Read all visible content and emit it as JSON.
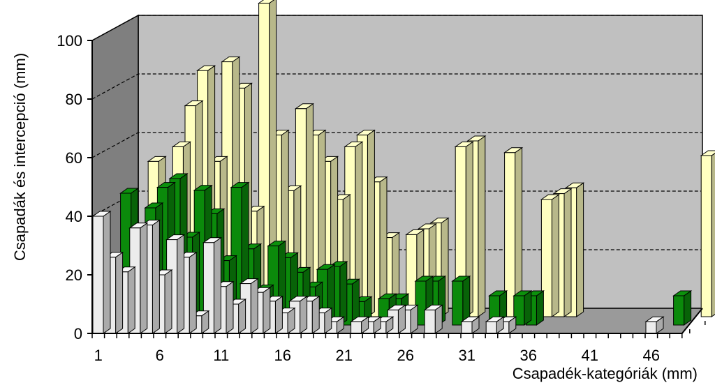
{
  "chart_data": {
    "type": "bar",
    "subtype": "3d-clustered-depth",
    "title": "",
    "xlabel": "Csapadék-kategóriák (mm)",
    "ylabel": "Csapadák és intercepció (mm)",
    "ylim": [
      0,
      100
    ],
    "yticks": [
      0,
      20,
      40,
      60,
      80,
      100
    ],
    "xtick_labels": [
      "1",
      "6",
      "11",
      "16",
      "21",
      "26",
      "31",
      "36",
      "41",
      "46"
    ],
    "categories": [
      1,
      2,
      3,
      4,
      5,
      6,
      7,
      8,
      9,
      10,
      11,
      12,
      13,
      14,
      15,
      16,
      17,
      18,
      19,
      20,
      21,
      22,
      23,
      24,
      25,
      26,
      27,
      28,
      29,
      30,
      31,
      32,
      33,
      34,
      35,
      36,
      37,
      38,
      39,
      40,
      41,
      42,
      43,
      44,
      45,
      46,
      47,
      48
    ],
    "grid": true,
    "colors": {
      "front": "#ececec",
      "middle": "#0b8a0b",
      "back": "#ffffc0",
      "wall": "#c0c0c0",
      "side_wall": "#7f7f7f",
      "floor": "#9a9a9a"
    },
    "series": [
      {
        "values": [
          40,
          26,
          21,
          36,
          37,
          20,
          32,
          26,
          6,
          31,
          16,
          10,
          17,
          14,
          11,
          7,
          11,
          11,
          7,
          4,
          null,
          4,
          4,
          4,
          8,
          8,
          null,
          8,
          null,
          null,
          4,
          null,
          4,
          4,
          null,
          null,
          null,
          null,
          null,
          null,
          null,
          null,
          null,
          null,
          null,
          4,
          null,
          null
        ]
      },
      {
        "values": [
          null,
          45,
          30,
          40,
          47,
          50,
          30,
          46,
          38,
          22,
          47,
          26,
          12,
          27,
          23,
          18,
          13,
          19,
          20,
          14,
          8,
          null,
          9,
          9,
          null,
          15,
          15,
          null,
          15,
          null,
          null,
          10,
          null,
          10,
          10,
          null,
          null,
          null,
          null,
          null,
          null,
          null,
          null,
          null,
          null,
          null,
          10,
          null
        ]
      },
      {
        "values": [
          null,
          null,
          53,
          42,
          58,
          72,
          84,
          53,
          87,
          78,
          36,
          107,
          62,
          43,
          71,
          62,
          53,
          40,
          58,
          62,
          46,
          27,
          null,
          28,
          30,
          32,
          null,
          58,
          60,
          null,
          null,
          56,
          null,
          null,
          40,
          42,
          44,
          null,
          null,
          null,
          null,
          null,
          null,
          null,
          null,
          null,
          null,
          55
        ]
      }
    ]
  }
}
